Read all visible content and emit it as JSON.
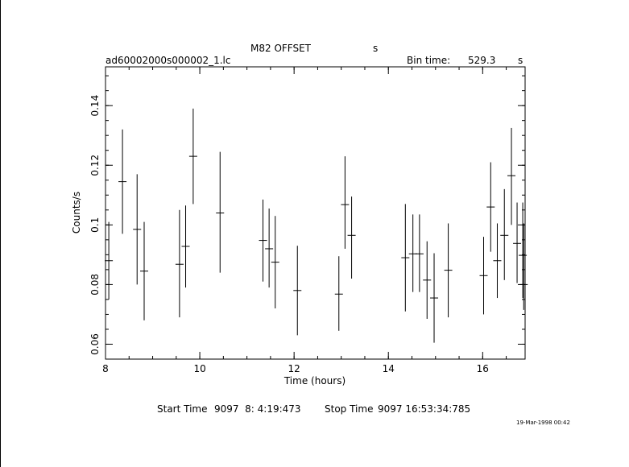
{
  "header": {
    "object": "M82 OFFSET",
    "unit": "s",
    "file": "ad60002000s000002_1.lc",
    "bin_label": "Bin time:",
    "bin_value": "529.3",
    "bin_unit": "s"
  },
  "footer": {
    "start_label": "Start Time",
    "start_value": "9097  8: 4:19:473",
    "stop_label": "Stop Time",
    "stop_value": "9097 16:53:34:785",
    "stamp": "19-Mar-1998 00:42"
  },
  "chart_data": {
    "type": "scatter",
    "xlabel": "Time (hours)",
    "ylabel": "Counts/s",
    "xlim": [
      8,
      16.9
    ],
    "ylim": [
      0.055,
      0.153
    ],
    "xticks": [
      8,
      10,
      12,
      14,
      16
    ],
    "yticks": [
      0.06,
      0.08,
      0.1,
      0.12,
      0.14
    ],
    "xtick_labels": [
      "8",
      "10",
      "12",
      "14",
      "16"
    ],
    "ytick_labels": [
      "0.06",
      "0.08",
      "0.1",
      "0.12",
      "0.14"
    ],
    "x_minor_step": 0.5,
    "y_minor_step": 0.005,
    "points": [
      {
        "x": 8.07,
        "y": 0.088,
        "ylo": 0.075,
        "yhi": 0.101
      },
      {
        "x": 8.36,
        "y": 0.1145,
        "ylo": 0.097,
        "yhi": 0.132
      },
      {
        "x": 8.67,
        "y": 0.0985,
        "ylo": 0.08,
        "yhi": 0.117
      },
      {
        "x": 8.82,
        "y": 0.0845,
        "ylo": 0.068,
        "yhi": 0.101
      },
      {
        "x": 9.57,
        "y": 0.0868,
        "ylo": 0.069,
        "yhi": 0.105
      },
      {
        "x": 9.7,
        "y": 0.0928,
        "ylo": 0.079,
        "yhi": 0.1065
      },
      {
        "x": 9.86,
        "y": 0.123,
        "ylo": 0.107,
        "yhi": 0.139
      },
      {
        "x": 10.43,
        "y": 0.104,
        "ylo": 0.084,
        "yhi": 0.1245
      },
      {
        "x": 11.34,
        "y": 0.0948,
        "ylo": 0.081,
        "yhi": 0.1085
      },
      {
        "x": 11.47,
        "y": 0.092,
        "ylo": 0.079,
        "yhi": 0.1055
      },
      {
        "x": 11.6,
        "y": 0.0875,
        "ylo": 0.072,
        "yhi": 0.103
      },
      {
        "x": 12.07,
        "y": 0.078,
        "ylo": 0.063,
        "yhi": 0.093
      },
      {
        "x": 12.95,
        "y": 0.0768,
        "ylo": 0.0645,
        "yhi": 0.0895
      },
      {
        "x": 13.08,
        "y": 0.1068,
        "ylo": 0.092,
        "yhi": 0.123
      },
      {
        "x": 13.22,
        "y": 0.0965,
        "ylo": 0.082,
        "yhi": 0.1095
      },
      {
        "x": 14.36,
        "y": 0.089,
        "ylo": 0.071,
        "yhi": 0.107
      },
      {
        "x": 14.52,
        "y": 0.0903,
        "ylo": 0.0775,
        "yhi": 0.1035
      },
      {
        "x": 14.66,
        "y": 0.0903,
        "ylo": 0.0775,
        "yhi": 0.1035
      },
      {
        "x": 14.82,
        "y": 0.0815,
        "ylo": 0.0685,
        "yhi": 0.0945
      },
      {
        "x": 14.97,
        "y": 0.0755,
        "ylo": 0.0605,
        "yhi": 0.0905
      },
      {
        "x": 15.27,
        "y": 0.0848,
        "ylo": 0.069,
        "yhi": 0.1005
      },
      {
        "x": 16.02,
        "y": 0.083,
        "ylo": 0.07,
        "yhi": 0.096
      },
      {
        "x": 16.17,
        "y": 0.106,
        "ylo": 0.091,
        "yhi": 0.121
      },
      {
        "x": 16.31,
        "y": 0.088,
        "ylo": 0.0755,
        "yhi": 0.1005
      },
      {
        "x": 16.46,
        "y": 0.0965,
        "ylo": 0.0815,
        "yhi": 0.112
      },
      {
        "x": 16.61,
        "y": 0.1165,
        "ylo": 0.1,
        "yhi": 0.1325
      },
      {
        "x": 16.73,
        "y": 0.0938,
        "ylo": 0.0805,
        "yhi": 0.1075
      },
      {
        "x": 16.85,
        "y": 0.0898,
        "ylo": 0.0755,
        "yhi": 0.1075
      },
      {
        "x": 16.87,
        "y": 0.08,
        "ylo": 0.0715,
        "yhi": 0.1005
      }
    ]
  }
}
